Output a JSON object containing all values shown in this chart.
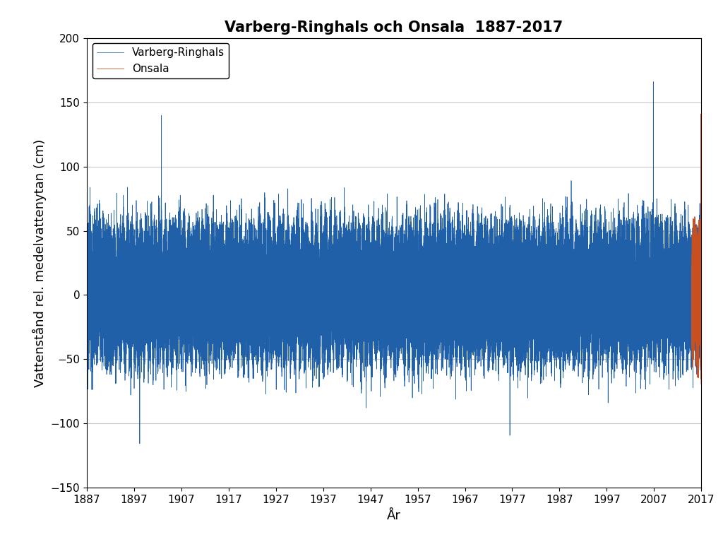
{
  "title": "Varberg-Ringhals och Onsala  1887-2017",
  "xlabel": "År",
  "ylabel": "Vattenstånd rel. medelvattenytan (cm)",
  "blue_label": "Varberg-Ringhals",
  "orange_label": "Onsala",
  "blue_color": "#2060a8",
  "orange_color": "#c85020",
  "blue_start_year": 1887,
  "blue_end_year": 2017,
  "orange_start_year": 2015,
  "orange_end_year": 2017,
  "ylim": [
    -150,
    200
  ],
  "yticks": [
    -150,
    -100,
    -50,
    0,
    50,
    100,
    150,
    200
  ],
  "xticks": [
    1887,
    1897,
    1907,
    1917,
    1927,
    1937,
    1947,
    1957,
    1967,
    1977,
    1987,
    1997,
    2007,
    2017
  ],
  "title_fontsize": 15,
  "axis_label_fontsize": 13,
  "tick_fontsize": 11,
  "legend_fontsize": 11,
  "background_color": "#ffffff",
  "grid_color": "#c8c8c8",
  "linewidth_blue": 0.5,
  "linewidth_orange": 0.6
}
